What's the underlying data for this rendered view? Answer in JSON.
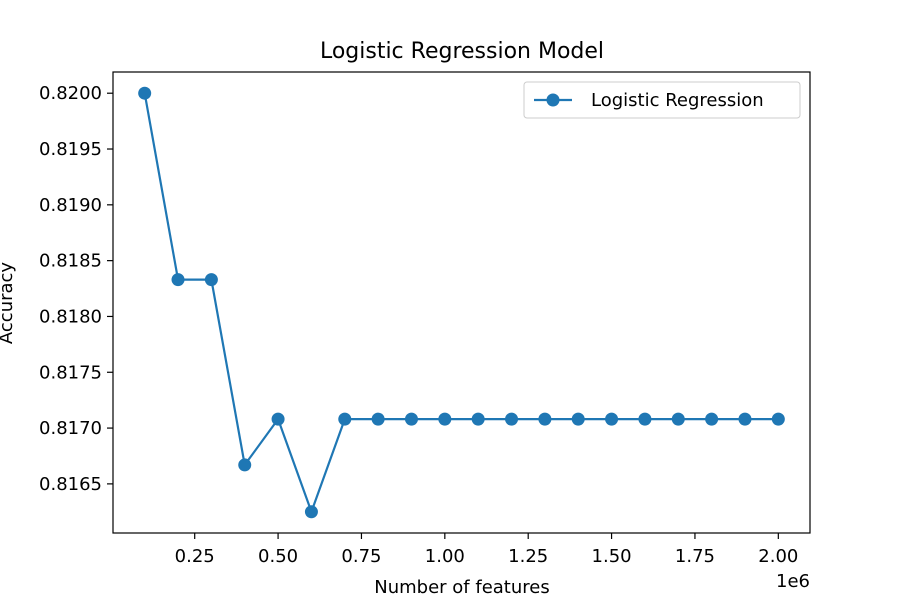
{
  "chart_data": {
    "type": "line",
    "title": "Logistic Regression Model",
    "xlabel": "Number of features",
    "ylabel": "Accuracy",
    "x_offset_label": "1e6",
    "x": [
      100000,
      200000,
      300000,
      400000,
      500000,
      600000,
      700000,
      800000,
      900000,
      1000000,
      1100000,
      1200000,
      1300000,
      1400000,
      1500000,
      1600000,
      1700000,
      1800000,
      1900000,
      2000000
    ],
    "series": [
      {
        "name": "Logistic Regression",
        "color": "#1f77b4",
        "marker": "circle",
        "values": [
          0.82,
          0.81833,
          0.81833,
          0.81667,
          0.81708,
          0.81625,
          0.81708,
          0.81708,
          0.81708,
          0.81708,
          0.81708,
          0.81708,
          0.81708,
          0.81708,
          0.81708,
          0.81708,
          0.81708,
          0.81708,
          0.81708,
          0.81708
        ]
      }
    ],
    "xlim": [
      5000,
      2095000
    ],
    "ylim": [
      0.81606,
      0.82019
    ],
    "x_ticks": [
      250000,
      500000,
      750000,
      1000000,
      1250000,
      1500000,
      1750000,
      2000000
    ],
    "x_tick_labels": [
      "0.25",
      "0.50",
      "0.75",
      "1.00",
      "1.25",
      "1.50",
      "1.75",
      "2.00"
    ],
    "y_ticks": [
      0.8165,
      0.817,
      0.8175,
      0.818,
      0.8185,
      0.819,
      0.8195,
      0.82
    ],
    "y_tick_labels": [
      "0.8165",
      "0.8170",
      "0.8175",
      "0.8180",
      "0.8185",
      "0.8190",
      "0.8195",
      "0.8200"
    ],
    "grid": false,
    "legend_position": "top-right"
  }
}
